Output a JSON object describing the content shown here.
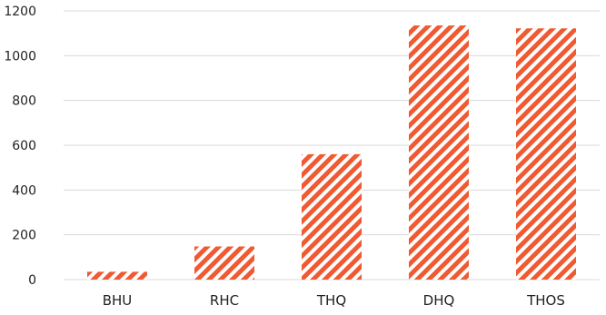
{
  "chart_data": {
    "type": "bar",
    "categories": [
      "BHU",
      "RHC",
      "THQ",
      "DHQ",
      "THOS"
    ],
    "values": [
      35,
      148,
      560,
      1135,
      1122
    ],
    "ylim": [
      0,
      1200
    ],
    "yticks": [
      0,
      200,
      400,
      600,
      800,
      1000,
      1200
    ],
    "grid": true,
    "legend": "none",
    "bar_color": "#f05a32",
    "bar_pattern": "diagonal-stripes"
  }
}
